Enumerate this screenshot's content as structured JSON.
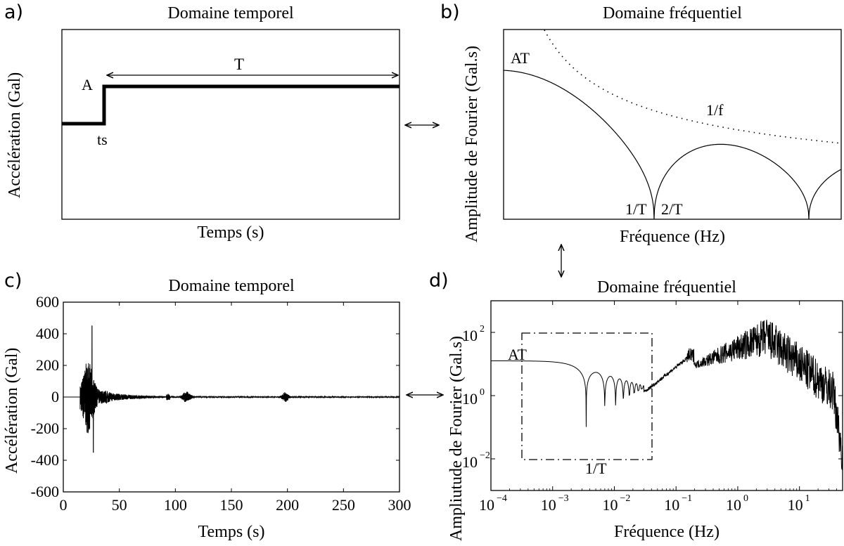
{
  "panels": {
    "a": {
      "letter": "a)",
      "title": "Domaine temporel",
      "xlabel": "Temps (s)",
      "ylabel": "Accélération (Gal)",
      "labels": {
        "T": "T",
        "A": "A",
        "ts": "ts"
      }
    },
    "b": {
      "letter": "b)",
      "title": "Domaine fréquentiel",
      "xlabel": "Fréquence (Hz)",
      "ylabel": "Amplitude de Fourier (Gal.s)",
      "labels": {
        "AT": "AT",
        "inv_f": "1/f",
        "inv_T": "1/T",
        "two_T": "2/T"
      }
    },
    "c": {
      "letter": "c)",
      "title": "Domaine temporel",
      "xlabel": "Temps (s)",
      "ylabel": "Accélération (Gal)"
    },
    "d": {
      "letter": "d)",
      "title": "Domaine fréquentiel",
      "xlabel": "Fréquence (Hz)",
      "ylabel": "Ampliutude de Fourier (Gal.s)",
      "labels": {
        "AT": "AT",
        "inv_T": "1/T"
      }
    }
  },
  "chart_data": [
    {
      "panel": "a",
      "type": "line",
      "title": "Domaine temporel",
      "xlabel": "Temps (s)",
      "ylabel": "Accélération (Gal)",
      "description_values": {
        "ts": "step onset",
        "A": "step amplitude",
        "T": "duration"
      }
    },
    {
      "panel": "b",
      "type": "line",
      "title": "Domaine fréquentiel",
      "xlabel": "Fréquence (Hz)",
      "ylabel": "Amplitude de Fourier (Gal.s)",
      "series": [
        {
          "style": "solid"
        },
        {
          "name": "1/f",
          "style": "dotted"
        }
      ]
    },
    {
      "panel": "c",
      "type": "line",
      "title": "Domaine temporel",
      "xlabel": "Temps (s)",
      "ylabel": "Accélération (Gal)",
      "xlim": [
        0,
        300
      ],
      "ylim": [
        -600,
        600
      ],
      "xticks": [
        0,
        50,
        100,
        150,
        200,
        250,
        300
      ],
      "yticks": [
        600,
        400,
        200,
        0,
        -200,
        -400,
        -600
      ],
      "bursts": [
        {
          "t": [
            15,
            40
          ],
          "peak": 450,
          "trough": -350
        },
        {
          "t": [
            60,
            90
          ],
          "amp": 25
        },
        {
          "t": [
            90,
            95
          ],
          "amp": 20
        },
        {
          "t": [
            105,
            118
          ],
          "amp": 35
        },
        {
          "t": [
            193,
            203
          ],
          "amp": 30
        }
      ]
    },
    {
      "panel": "d",
      "type": "line",
      "title": "Domaine fréquentiel",
      "xlabel": "Fréquence (Hz)",
      "ylabel": "Ampliutude de Fourier (Gal.s)",
      "xscale": "log",
      "yscale": "log",
      "xticks": [
        "10^-4",
        "10^-3",
        "10^-2",
        "10^-1",
        "10^0",
        "10^1"
      ],
      "yticks": [
        "10^2",
        "10^0",
        "10^-2"
      ],
      "xlim": [
        0.0001,
        50
      ],
      "ylim": [
        0.001,
        1000
      ]
    }
  ]
}
